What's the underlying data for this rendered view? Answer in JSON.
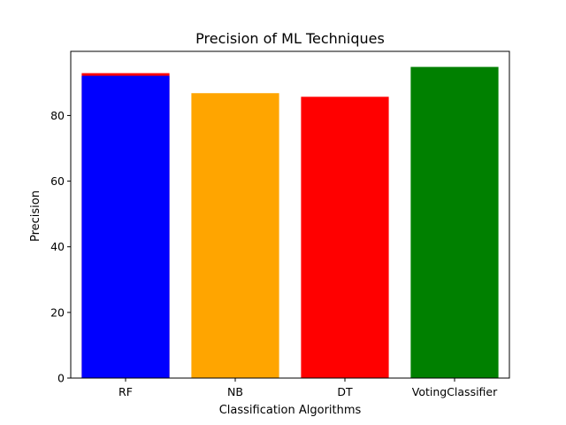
{
  "chart_data": {
    "type": "bar",
    "title": "Precision of ML Techniques",
    "xlabel": "Classification Algorithms",
    "ylabel": "Precision",
    "categories": [
      "RF",
      "NB",
      "DT",
      "VotingClassifier"
    ],
    "bars": [
      {
        "category": "RF",
        "value": 92.1,
        "color": "#0000ff"
      },
      {
        "category": "NB",
        "value": 86.8,
        "color": "#ffa500"
      },
      {
        "category": "DT",
        "value": 85.7,
        "color": "#ff0000"
      },
      {
        "category": "VotingClassifier",
        "value": 94.8,
        "color": "#008000"
      }
    ],
    "overlay_bars": [
      {
        "category": "RF",
        "value": 92.9,
        "color": "#ff0000"
      }
    ],
    "ylim": [
      0,
      99.54
    ],
    "yticks": [
      0,
      20,
      40,
      60,
      80
    ],
    "grid": false,
    "legend": "none"
  }
}
